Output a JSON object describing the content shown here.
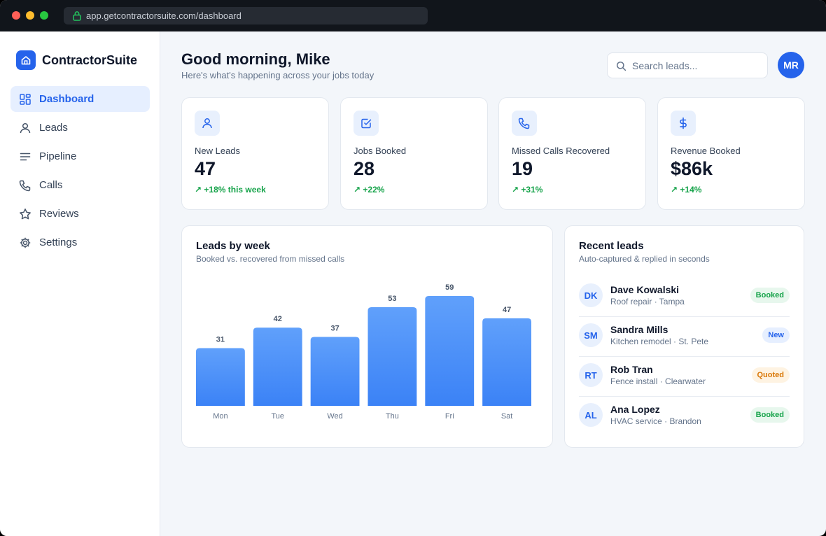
{
  "browser": {
    "url": "app.getcontractorsuite.com/dashboard"
  },
  "brand": {
    "name": "ContractorSuite",
    "logo_icon": "home-icon"
  },
  "nav": [
    {
      "label": "Dashboard",
      "icon": "dashboard-grid-icon",
      "active": true
    },
    {
      "label": "Leads",
      "icon": "user-icon",
      "active": false
    },
    {
      "label": "Pipeline",
      "icon": "lines-icon",
      "active": false
    },
    {
      "label": "Calls",
      "icon": "phone-icon",
      "active": false
    },
    {
      "label": "Reviews",
      "icon": "star-icon",
      "active": false
    },
    {
      "label": "Settings",
      "icon": "gear-icon",
      "active": false
    }
  ],
  "header": {
    "greeting": "Good morning, Mike",
    "subtitle": "Here's what's happening across your jobs today",
    "search_placeholder": "Search leads...",
    "avatar_initials": "MR"
  },
  "stats": [
    {
      "label": "New Leads",
      "value": "47",
      "change": "↗ +18% this week",
      "icon": "user-icon"
    },
    {
      "label": "Jobs Booked",
      "value": "28",
      "change": "↗ +22%",
      "icon": "check-square-icon"
    },
    {
      "label": "Missed Calls Recovered",
      "value": "19",
      "change": "↗ +31%",
      "icon": "phone-icon"
    },
    {
      "label": "Revenue Booked",
      "value": "$86k",
      "change": "↗ +14%",
      "icon": "dollar-icon"
    }
  ],
  "chart_card": {
    "title": "Leads by week",
    "subtitle": "Booked vs. recovered from missed calls"
  },
  "chart_data": {
    "type": "bar",
    "title": "Leads by week",
    "subtitle": "Booked vs. recovered from missed calls",
    "categories": [
      "Mon",
      "Tue",
      "Wed",
      "Thu",
      "Fri",
      "Sat"
    ],
    "values": [
      31,
      42,
      37,
      53,
      59,
      47
    ],
    "ylim": [
      0,
      59
    ],
    "grid": false,
    "bar_color": "#4d8ff7"
  },
  "recent": {
    "title": "Recent leads",
    "subtitle": "Auto-captured & replied in seconds",
    "leads": [
      {
        "initials": "DK",
        "name": "Dave Kowalski",
        "detail": "Roof repair · Tampa",
        "status": "Booked",
        "status_color": "#16a34a",
        "status_bg": "#e7f7ed"
      },
      {
        "initials": "SM",
        "name": "Sandra Mills",
        "detail": "Kitchen remodel · St. Pete",
        "status": "New",
        "status_color": "#2563eb",
        "status_bg": "#e6efff"
      },
      {
        "initials": "RT",
        "name": "Rob Tran",
        "detail": "Fence install · Clearwater",
        "status": "Quoted",
        "status_color": "#d97706",
        "status_bg": "#fef3e2"
      },
      {
        "initials": "AL",
        "name": "Ana Lopez",
        "detail": "HVAC service · Brandon",
        "status": "Booked",
        "status_color": "#16a34a",
        "status_bg": "#e7f7ed"
      }
    ]
  }
}
